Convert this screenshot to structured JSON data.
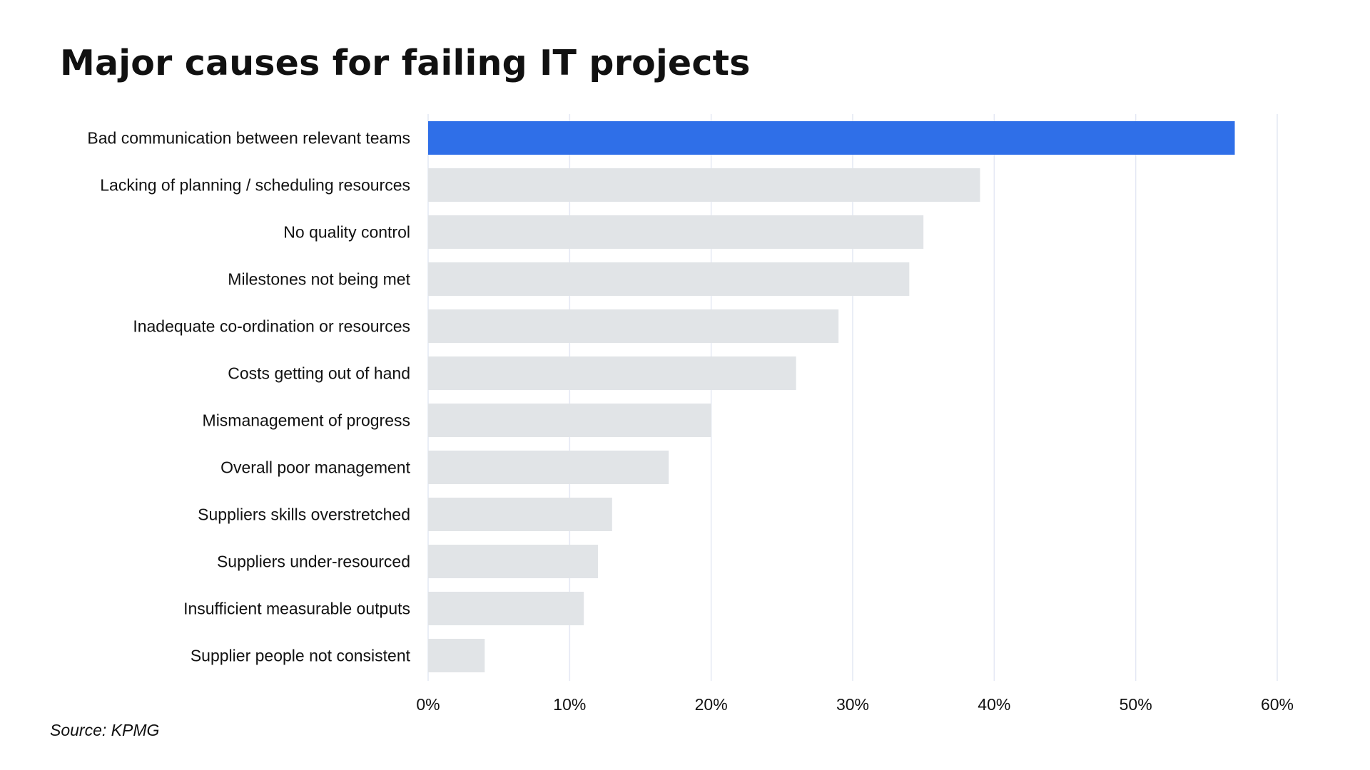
{
  "chart_data": {
    "type": "bar",
    "orientation": "horizontal",
    "title": "Major causes for failing IT projects",
    "source": "Source: KPMG",
    "categories": [
      "Bad communication between relevant teams",
      "Lacking of planning / scheduling resources",
      "No quality control",
      "Milestones not being met",
      "Inadequate co-ordination or resources",
      "Costs getting out of hand",
      "Mismanagement of progress",
      "Overall poor management",
      "Suppliers skills overstretched",
      "Suppliers under-resourced",
      "Insufficient measurable outputs",
      "Supplier people not consistent"
    ],
    "values": [
      57,
      39,
      35,
      34,
      29,
      26,
      20,
      17,
      13,
      12,
      11,
      4
    ],
    "xlim": [
      0,
      60
    ],
    "x_ticks": [
      0,
      10,
      20,
      30,
      40,
      50,
      60
    ],
    "x_tick_labels": [
      "0%",
      "10%",
      "20%",
      "30%",
      "40%",
      "50%",
      "60%"
    ],
    "xlabel": "",
    "ylabel": "",
    "grid": true,
    "highlight_index": 0,
    "colors": {
      "highlight": "#2F6FE8",
      "bar": "#E1E4E7",
      "grid": "#E4E8F4"
    }
  }
}
